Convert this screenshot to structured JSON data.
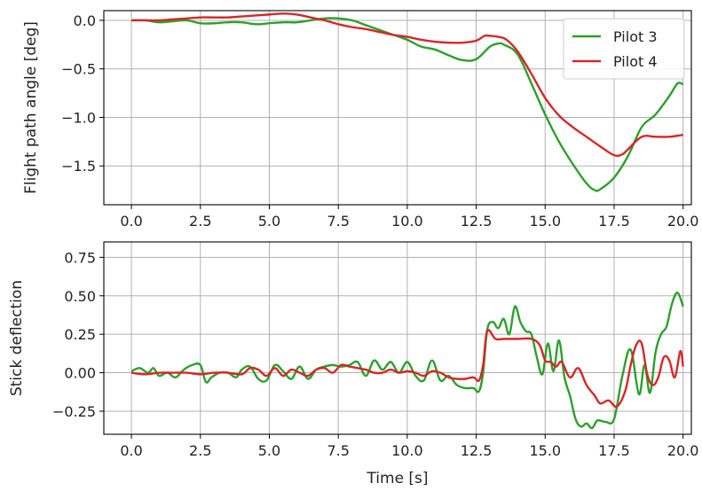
{
  "chart_data": [
    {
      "type": "line",
      "title": "",
      "xlabel": "",
      "ylabel": "Flight path angle [deg]",
      "xlim": [
        -1.0,
        20.3
      ],
      "ylim": [
        -1.9,
        0.1
      ],
      "xticks": [
        0.0,
        2.5,
        5.0,
        7.5,
        10.0,
        12.5,
        15.0,
        17.5,
        20.0
      ],
      "xtick_labels": [
        "0.0",
        "2.5",
        "5.0",
        "7.5",
        "10.0",
        "12.5",
        "15.0",
        "17.5",
        "20.0"
      ],
      "yticks": [
        0.0,
        -0.5,
        -1.0,
        -1.5
      ],
      "ytick_labels": [
        "0.0",
        "−0.5",
        "−1.0",
        "−1.5"
      ],
      "grid": true,
      "legend": "top-right",
      "series": [
        {
          "name": "Pilot 3",
          "color": "#2ca02c",
          "x": [
            0,
            0.5,
            1,
            1.5,
            2,
            2.5,
            3,
            3.5,
            4,
            4.5,
            5,
            5.5,
            6,
            6.5,
            7,
            7.5,
            8,
            8.5,
            9,
            9.5,
            10,
            10.5,
            11,
            11.5,
            12,
            12.5,
            13,
            13.3,
            13.5,
            14,
            14.5,
            15,
            15.5,
            16,
            16.5,
            16.8,
            17,
            17.5,
            18,
            18.5,
            19,
            19.5,
            19.8,
            20
          ],
          "y": [
            0,
            0.0,
            -0.02,
            -0.01,
            0.0,
            -0.03,
            -0.03,
            -0.02,
            -0.02,
            -0.04,
            -0.03,
            -0.02,
            -0.02,
            0.0,
            0.02,
            0.02,
            0.0,
            -0.05,
            -0.1,
            -0.15,
            -0.2,
            -0.27,
            -0.3,
            -0.36,
            -0.41,
            -0.4,
            -0.27,
            -0.24,
            -0.25,
            -0.35,
            -0.65,
            -0.97,
            -1.25,
            -1.48,
            -1.68,
            -1.75,
            -1.74,
            -1.62,
            -1.4,
            -1.1,
            -0.97,
            -0.78,
            -0.65,
            -0.66
          ]
        },
        {
          "name": "Pilot 4",
          "color": "#d62728",
          "x": [
            0,
            0.5,
            1,
            1.5,
            2,
            2.5,
            3,
            3.5,
            4,
            4.5,
            5,
            5.5,
            6,
            6.5,
            7,
            7.5,
            8,
            8.5,
            9,
            9.5,
            10,
            10.5,
            11,
            11.5,
            12,
            12.5,
            12.8,
            13,
            13.3,
            13.6,
            14,
            14.5,
            15,
            15.5,
            16,
            16.5,
            17,
            17.5,
            17.8,
            18,
            18.5,
            19,
            19.5,
            20
          ],
          "y": [
            0,
            0.0,
            0.0,
            0.01,
            0.02,
            0.03,
            0.03,
            0.03,
            0.04,
            0.05,
            0.06,
            0.07,
            0.06,
            0.03,
            0.0,
            -0.04,
            -0.07,
            -0.09,
            -0.12,
            -0.15,
            -0.17,
            -0.2,
            -0.22,
            -0.23,
            -0.23,
            -0.21,
            -0.16,
            -0.16,
            -0.17,
            -0.2,
            -0.32,
            -0.55,
            -0.8,
            -0.98,
            -1.1,
            -1.2,
            -1.3,
            -1.39,
            -1.38,
            -1.33,
            -1.2,
            -1.2,
            -1.2,
            -1.18
          ]
        }
      ]
    },
    {
      "type": "line",
      "title": "",
      "xlabel": "Time [s]",
      "ylabel": "Stick deflection",
      "xlim": [
        -1.0,
        20.3
      ],
      "ylim": [
        -0.4,
        0.85
      ],
      "xticks": [
        0.0,
        2.5,
        5.0,
        7.5,
        10.0,
        12.5,
        15.0,
        17.5,
        20.0
      ],
      "xtick_labels": [
        "0.0",
        "2.5",
        "5.0",
        "7.5",
        "10.0",
        "12.5",
        "15.0",
        "17.5",
        "20.0"
      ],
      "yticks": [
        0.75,
        0.5,
        0.25,
        0.0,
        -0.25
      ],
      "ytick_labels": [
        "0.75",
        "0.50",
        "0.25",
        "0.00",
        "−0.25"
      ],
      "grid": true,
      "series": [
        {
          "name": "Pilot 3",
          "color": "#2ca02c",
          "x": [
            0,
            0.3,
            0.6,
            0.8,
            1.0,
            1.3,
            1.6,
            1.9,
            2.2,
            2.5,
            2.7,
            2.9,
            3.2,
            3.5,
            3.8,
            4.0,
            4.3,
            4.6,
            4.9,
            5.2,
            5.5,
            5.8,
            6.1,
            6.4,
            6.7,
            7.0,
            7.3,
            7.6,
            7.9,
            8.2,
            8.5,
            8.8,
            9.1,
            9.4,
            9.7,
            10.0,
            10.3,
            10.6,
            10.9,
            11.2,
            11.5,
            11.8,
            12.1,
            12.4,
            12.6,
            12.75,
            12.9,
            13.1,
            13.3,
            13.5,
            13.7,
            13.9,
            14.1,
            14.3,
            14.5,
            14.7,
            14.9,
            15.1,
            15.3,
            15.5,
            15.7,
            15.9,
            16.1,
            16.3,
            16.5,
            16.7,
            16.9,
            17.2,
            17.5,
            17.8,
            18.1,
            18.4,
            18.6,
            18.8,
            19.0,
            19.2,
            19.4,
            19.6,
            19.8,
            20.0
          ],
          "y": [
            0.01,
            0.03,
            0.0,
            0.03,
            -0.02,
            0.0,
            -0.03,
            0.02,
            0.05,
            0.05,
            -0.06,
            -0.03,
            0.0,
            0.0,
            -0.03,
            0.02,
            0.04,
            -0.04,
            -0.05,
            0.05,
            0.01,
            -0.04,
            0.04,
            -0.04,
            0.02,
            0.04,
            0.05,
            0.04,
            0.05,
            0.07,
            -0.02,
            0.08,
            0.02,
            0.07,
            0.0,
            0.07,
            -0.02,
            -0.05,
            0.08,
            -0.05,
            -0.02,
            -0.08,
            -0.1,
            -0.1,
            -0.12,
            0.0,
            0.28,
            0.33,
            0.29,
            0.35,
            0.25,
            0.43,
            0.33,
            0.27,
            0.25,
            0.1,
            -0.01,
            0.19,
            0.01,
            0.21,
            -0.03,
            -0.15,
            -0.3,
            -0.35,
            -0.33,
            -0.36,
            -0.31,
            -0.32,
            -0.3,
            -0.02,
            0.15,
            -0.14,
            0.05,
            -0.13,
            0.13,
            0.25,
            0.3,
            0.45,
            0.52,
            0.43
          ]
        },
        {
          "name": "Pilot 4",
          "color": "#d62728",
          "x": [
            0,
            0.5,
            1.0,
            1.5,
            2.0,
            2.5,
            3.0,
            3.5,
            4.0,
            4.3,
            4.6,
            4.9,
            5.2,
            5.5,
            5.8,
            6.1,
            6.4,
            6.7,
            7.0,
            7.3,
            7.6,
            7.9,
            8.2,
            8.5,
            8.8,
            9.1,
            9.4,
            9.7,
            10.0,
            10.3,
            10.6,
            10.9,
            11.2,
            11.5,
            11.8,
            12.1,
            12.4,
            12.6,
            12.75,
            12.9,
            13.2,
            13.5,
            14.0,
            14.5,
            14.8,
            15.0,
            15.2,
            15.4,
            15.6,
            15.9,
            16.2,
            16.5,
            16.8,
            17.0,
            17.3,
            17.6,
            17.9,
            18.1,
            18.3,
            18.5,
            18.7,
            18.9,
            19.1,
            19.3,
            19.5,
            19.7,
            19.9,
            20.0
          ],
          "y": [
            0.0,
            -0.01,
            0.0,
            0.0,
            0.0,
            -0.01,
            0.0,
            0.0,
            -0.01,
            0.03,
            0.02,
            -0.02,
            0.03,
            -0.02,
            0.02,
            0.0,
            -0.02,
            0.02,
            0.03,
            0.0,
            0.05,
            0.04,
            0.03,
            0.02,
            0.0,
            0.0,
            0.02,
            0.0,
            0.01,
            0.0,
            -0.02,
            0.01,
            0.0,
            -0.03,
            -0.04,
            -0.04,
            -0.03,
            -0.05,
            0.05,
            0.27,
            0.22,
            0.22,
            0.22,
            0.22,
            0.18,
            0.08,
            0.07,
            0.04,
            0.07,
            -0.03,
            0.03,
            -0.08,
            -0.15,
            -0.2,
            -0.18,
            -0.22,
            -0.12,
            0.05,
            0.18,
            0.19,
            -0.01,
            -0.08,
            -0.03,
            0.1,
            0.08,
            -0.03,
            0.14,
            0.04
          ]
        }
      ]
    }
  ]
}
